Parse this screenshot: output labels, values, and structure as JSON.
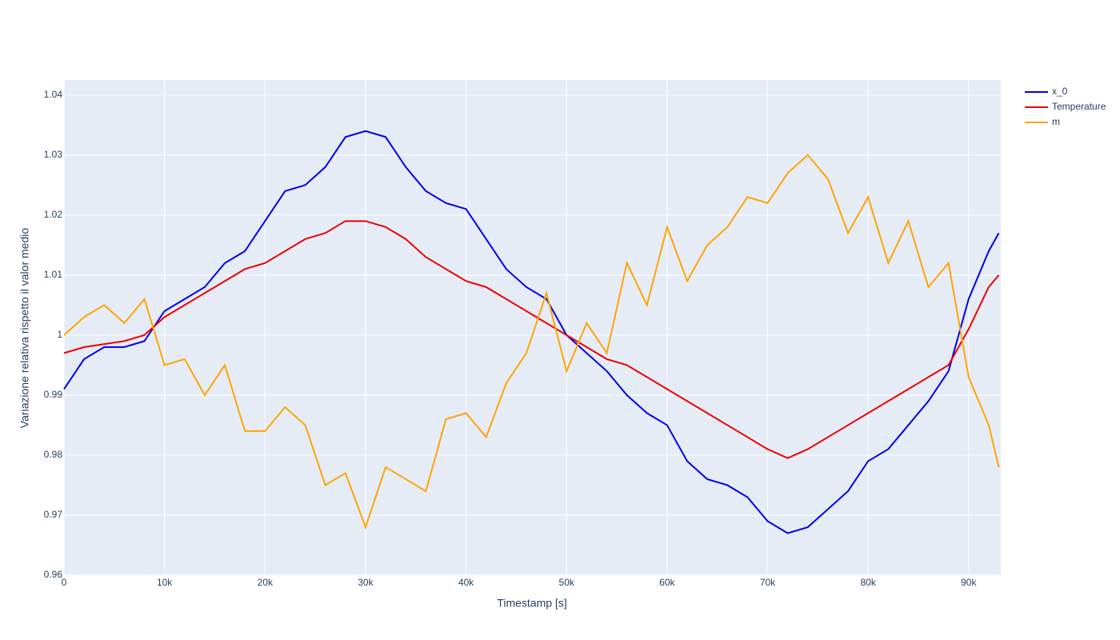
{
  "chart_data": {
    "type": "line",
    "x_label": "Timestamp [s]",
    "y_label": "Variazione relativa rispetto il valor medio",
    "x": [
      0,
      2000,
      4000,
      6000,
      8000,
      10000,
      12000,
      14000,
      16000,
      18000,
      20000,
      22000,
      24000,
      26000,
      28000,
      30000,
      32000,
      34000,
      36000,
      38000,
      40000,
      42000,
      44000,
      46000,
      48000,
      50000,
      52000,
      54000,
      56000,
      58000,
      60000,
      62000,
      64000,
      66000,
      68000,
      70000,
      72000,
      74000,
      76000,
      78000,
      80000,
      82000,
      84000,
      86000,
      88000,
      90000,
      92000,
      93000
    ],
    "series": [
      {
        "name": "x_0",
        "color": "#0000ee",
        "values": [
          0.991,
          0.996,
          0.998,
          0.998,
          0.999,
          1.004,
          1.006,
          1.008,
          1.012,
          1.014,
          1.019,
          1.024,
          1.025,
          1.028,
          1.033,
          1.034,
          1.033,
          1.028,
          1.024,
          1.022,
          1.021,
          1.016,
          1.011,
          1.008,
          1.006,
          1.0,
          0.997,
          0.994,
          0.99,
          0.987,
          0.985,
          0.979,
          0.976,
          0.975,
          0.973,
          0.969,
          0.967,
          0.968,
          0.971,
          0.974,
          0.979,
          0.981,
          0.985,
          0.989,
          0.994,
          1.006,
          1.014,
          1.017
        ]
      },
      {
        "name": "Temperature",
        "color": "#ee0000",
        "values": [
          0.997,
          0.998,
          0.9985,
          0.999,
          1.0,
          1.003,
          1.005,
          1.007,
          1.009,
          1.011,
          1.012,
          1.014,
          1.016,
          1.017,
          1.019,
          1.019,
          1.018,
          1.016,
          1.013,
          1.011,
          1.009,
          1.008,
          1.006,
          1.004,
          1.002,
          1.0,
          0.998,
          0.996,
          0.995,
          0.993,
          0.991,
          0.989,
          0.987,
          0.985,
          0.983,
          0.981,
          0.9795,
          0.981,
          0.983,
          0.985,
          0.987,
          0.989,
          0.991,
          0.993,
          0.995,
          1.001,
          1.008,
          1.01
        ]
      },
      {
        "name": "m",
        "color": "#ffa500",
        "values": [
          1.0,
          1.003,
          1.005,
          1.002,
          1.006,
          0.995,
          0.996,
          0.99,
          0.995,
          0.984,
          0.984,
          0.988,
          0.985,
          0.975,
          0.977,
          0.968,
          0.978,
          0.976,
          0.974,
          0.986,
          0.987,
          0.983,
          0.992,
          0.997,
          1.007,
          0.994,
          1.002,
          0.997,
          1.012,
          1.005,
          1.018,
          1.009,
          1.015,
          1.018,
          1.023,
          1.022,
          1.027,
          1.03,
          1.026,
          1.017,
          1.023,
          1.012,
          1.019,
          1.008,
          1.012,
          0.993,
          0.985,
          0.978
        ]
      }
    ],
    "xlim": [
      0,
      93200
    ],
    "ylim": [
      0.96,
      1.0425
    ],
    "xticks": [
      0,
      {
        "value": 10000,
        "label": "10k"
      },
      {
        "value": 20000,
        "label": "20k"
      },
      {
        "value": 30000,
        "label": "30k"
      },
      {
        "value": 40000,
        "label": "40k"
      },
      {
        "value": 50000,
        "label": "50k"
      },
      {
        "value": 60000,
        "label": "60k"
      },
      {
        "value": 70000,
        "label": "70k"
      },
      {
        "value": 80000,
        "label": "80k"
      },
      {
        "value": 90000,
        "label": "90k"
      }
    ],
    "yticks": [
      0.96,
      0.97,
      0.98,
      0.99,
      1,
      1.01,
      1.02,
      1.03,
      1.04
    ],
    "grid": true
  }
}
